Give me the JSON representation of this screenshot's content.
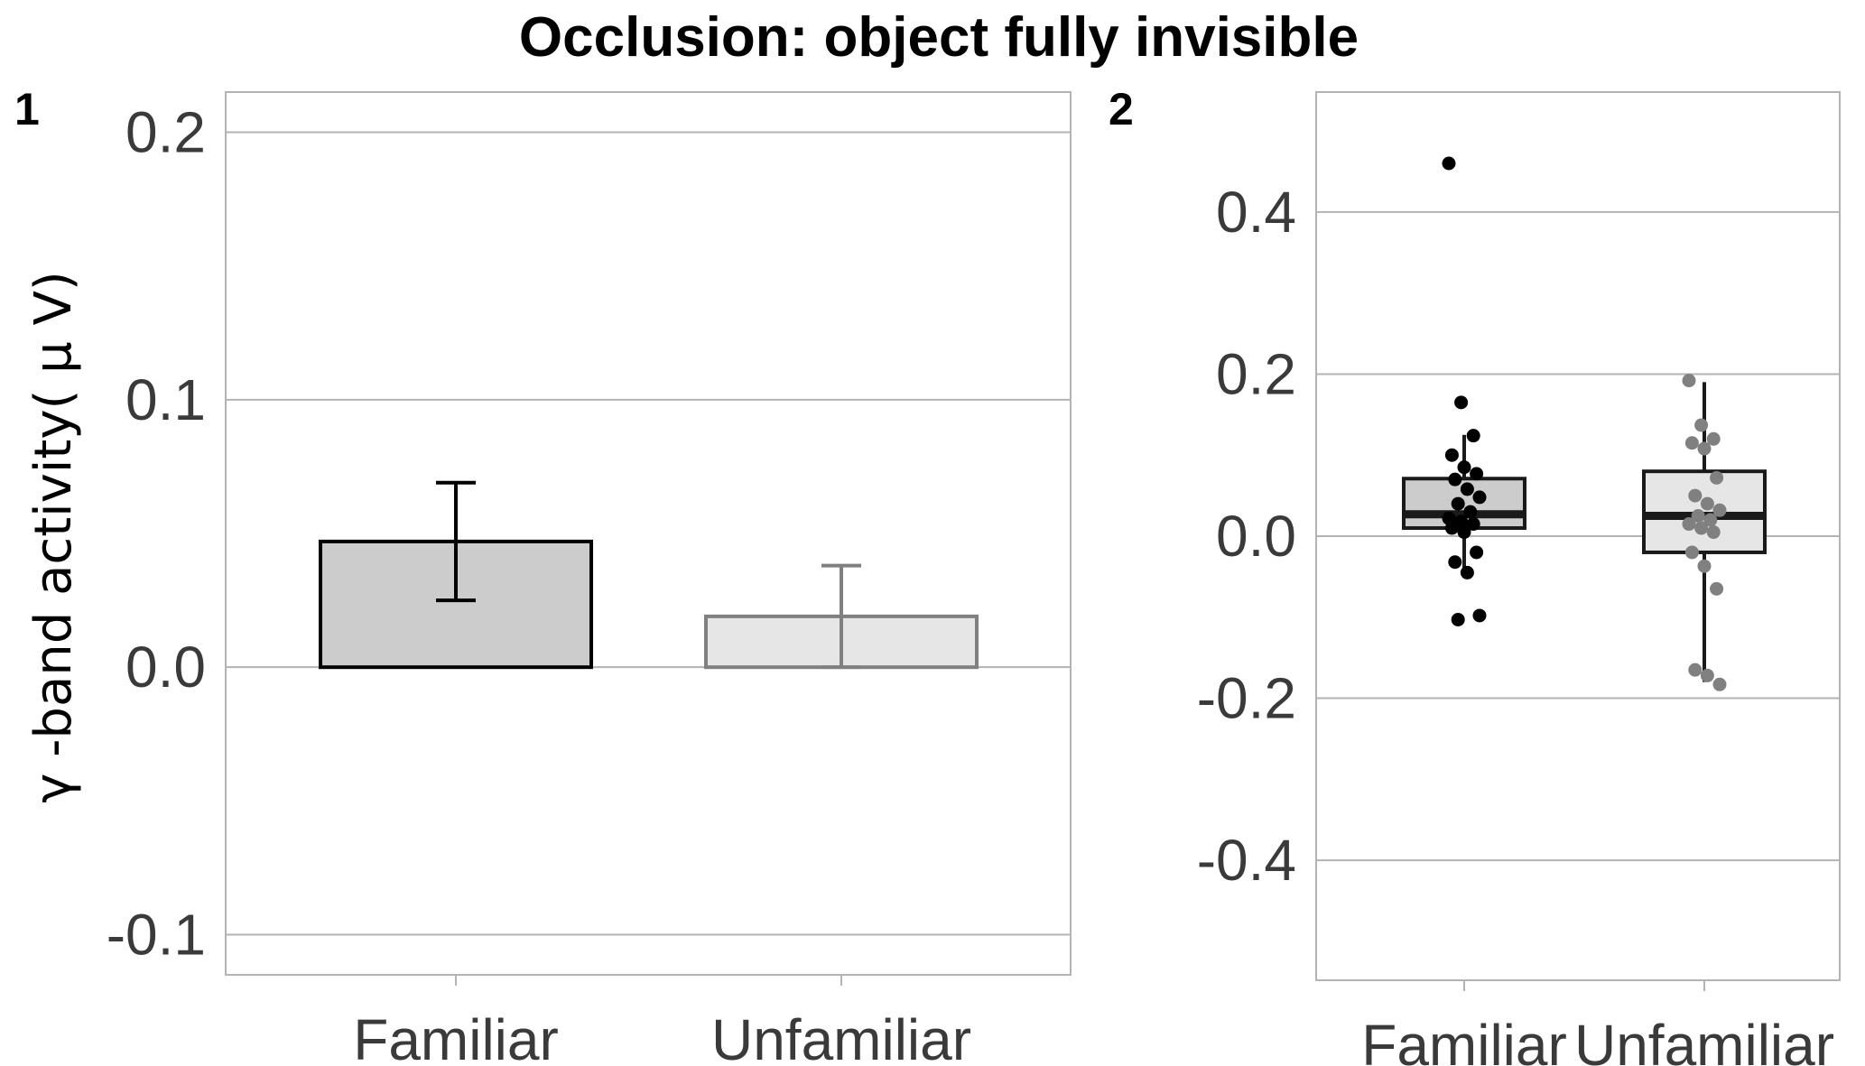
{
  "figure": {
    "title": "Occlusion: object fully invisible",
    "ylabel": "γ -band activity( μ V)"
  },
  "chart_data": [
    {
      "panel": "1",
      "type": "bar",
      "categories": [
        "Familiar",
        "Unfamiliar"
      ],
      "values": [
        0.047,
        0.019
      ],
      "error_low": [
        0.025,
        0.0
      ],
      "error_high": [
        0.069,
        0.038
      ],
      "ylim": [
        -0.115,
        0.215
      ],
      "yticks": [
        -0.1,
        0.0,
        0.1,
        0.2
      ],
      "ytick_labels": [
        "-0.1",
        "0.0",
        "0.1",
        "0.2"
      ],
      "xlabel": "",
      "ylabel": "γ -band activity( μ V)",
      "grid": true,
      "colors": {
        "fill": [
          "#cccccc",
          "#e6e6e6"
        ],
        "stroke": [
          "#000000",
          "#808080"
        ]
      }
    },
    {
      "panel": "2",
      "type": "box",
      "categories": [
        "Familiar",
        "Unfamiliar"
      ],
      "boxes": [
        {
          "name": "Familiar",
          "q1": 0.01,
          "median": 0.027,
          "q3": 0.071,
          "whisker_low": -0.045,
          "whisker_high": 0.125
        },
        {
          "name": "Unfamiliar",
          "q1": -0.02,
          "median": 0.025,
          "q3": 0.08,
          "whisker_low": -0.18,
          "whisker_high": 0.19
        }
      ],
      "points": [
        [
          0.46,
          0.165,
          0.124,
          0.1,
          0.085,
          0.077,
          0.07,
          0.058,
          0.048,
          0.04,
          0.03,
          0.022,
          0.018,
          0.015,
          0.01,
          0.005,
          -0.02,
          -0.032,
          -0.045,
          -0.098,
          -0.103
        ],
        [
          0.192,
          0.137,
          0.12,
          0.115,
          0.108,
          0.072,
          0.05,
          0.04,
          0.032,
          0.025,
          0.02,
          0.015,
          0.01,
          0.005,
          -0.02,
          -0.037,
          -0.065,
          -0.165,
          -0.172,
          -0.183
        ]
      ],
      "ylim": [
        -0.548,
        0.548
      ],
      "yticks": [
        -0.4,
        -0.2,
        0.0,
        0.2,
        0.4
      ],
      "ytick_labels": [
        "-0.4",
        "-0.2",
        "0.0",
        "0.2",
        "0.4"
      ],
      "xlabel": "",
      "ylabel": "",
      "grid": true,
      "colors": {
        "box_fill": [
          "#cccccc",
          "#e6e6e6"
        ],
        "box_stroke": "#1a1a1a",
        "points": [
          "#000000",
          "#808080"
        ]
      }
    }
  ]
}
